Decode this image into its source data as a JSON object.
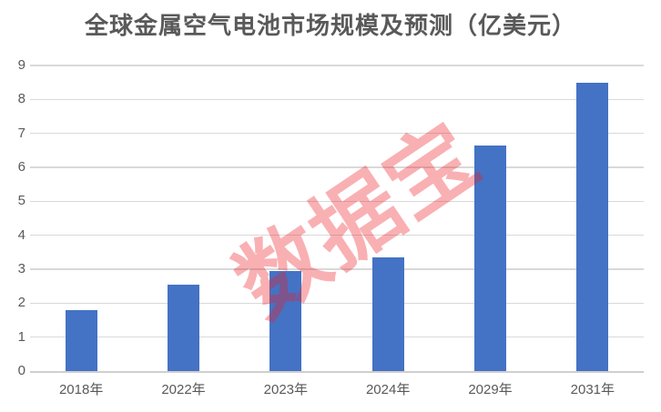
{
  "chart_data": {
    "type": "bar",
    "title": "全球金属空气电池市场规模及预测（亿美元）",
    "categories": [
      "2018年",
      "2022年",
      "2023年",
      "2024年",
      "2029年",
      "2031年"
    ],
    "values": [
      1.8,
      2.55,
      2.95,
      3.35,
      6.65,
      8.5
    ],
    "xlabel": "",
    "ylabel": "",
    "ylim": [
      0,
      9
    ],
    "ytick_interval": 1,
    "yticks": [
      "0",
      "1",
      "2",
      "3",
      "4",
      "5",
      "6",
      "7",
      "8",
      "9"
    ],
    "grid": true,
    "legend": false,
    "bar_color": "#4472C4",
    "gridline_color": "#D9D9D9",
    "axis_line_color": "#D0CECE",
    "tick_label_color": "#595959",
    "title_color": "#595959"
  },
  "watermark": {
    "text": "数据宝",
    "color": "rgba(237,28,36,0.35)"
  }
}
